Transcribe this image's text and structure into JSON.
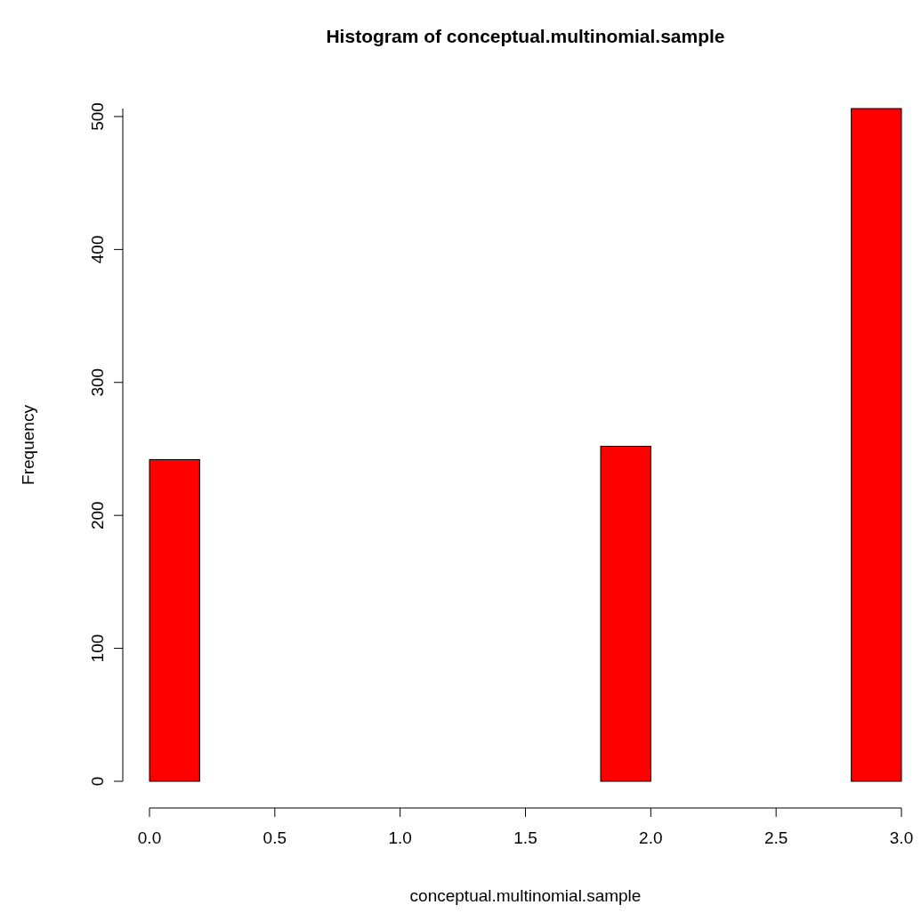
{
  "chart_data": {
    "type": "histogram",
    "title": "Histogram of conceptual.multinomial.sample",
    "xlabel": "conceptual.multinomial.sample",
    "ylabel": "Frequency",
    "bins": [
      0,
      0.2,
      0.4,
      0.6,
      0.8,
      1.0,
      1.2,
      1.4,
      1.6,
      1.8,
      2.0,
      2.2,
      2.4,
      2.6,
      2.8,
      3.0
    ],
    "values": [
      242,
      0,
      0,
      0,
      0,
      0,
      0,
      0,
      0,
      252,
      0,
      0,
      0,
      0,
      506
    ],
    "color": "#ff0000",
    "xlim": [
      0,
      3
    ],
    "xticks": [
      {
        "value": 0,
        "label": "0.0"
      },
      0.5,
      {
        "value": 1,
        "label": "1.0"
      },
      1.5,
      {
        "value": 2,
        "label": "2.0"
      },
      2.5,
      {
        "value": 3,
        "label": "3.0"
      }
    ],
    "ylim": [
      0,
      506
    ],
    "yticks": [
      0,
      100,
      200,
      300,
      400,
      500
    ],
    "grid": false
  }
}
